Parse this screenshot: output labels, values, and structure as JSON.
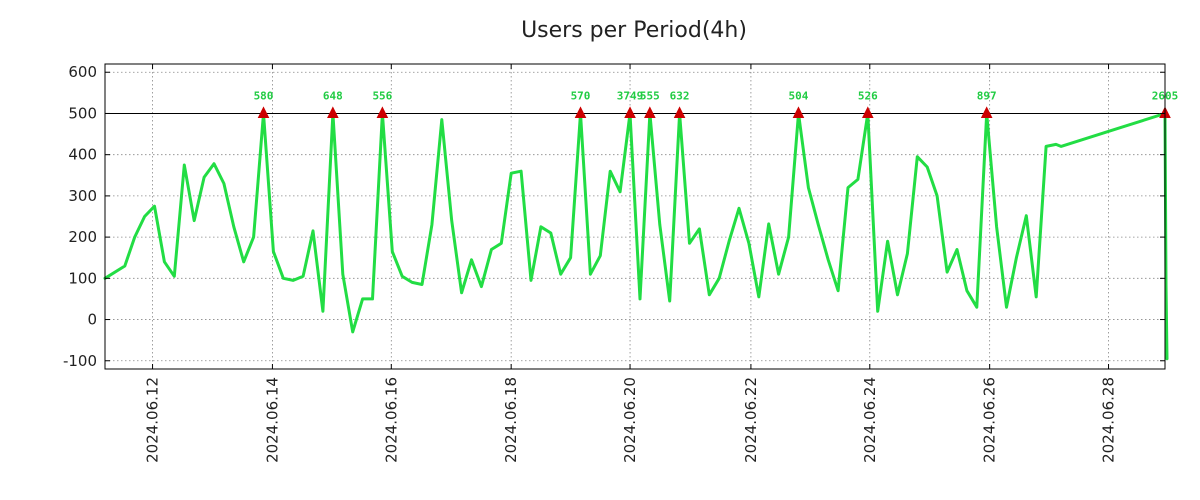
{
  "chart_data": {
    "type": "line",
    "title": "Users per Period(4h)",
    "xlabel": "",
    "ylabel": "",
    "ylim": [
      -120,
      620
    ],
    "xlim": [
      0,
      107
    ],
    "y_ticks": [
      600,
      500,
      400,
      300,
      200,
      100,
      0,
      -100
    ],
    "y_tick_labels": [
      "600",
      "500",
      "400",
      "300",
      "200",
      "100",
      "0",
      "-100"
    ],
    "x_ticks": [
      4.8,
      16.9,
      28.9,
      41,
      53,
      65.2,
      77.2,
      89.3,
      101.3
    ],
    "x_tick_labels": [
      "2024.06.12",
      "2024.06.14",
      "2024.06.16",
      "2024.06.18",
      "2024.06.20",
      "2024.06.22",
      "2024.06.24",
      "2024.06.26",
      "2024.06.28"
    ],
    "threshold": 500,
    "grid": true,
    "colors": {
      "line": "#22dd44",
      "marker": "#cc0000",
      "label": "#22cc44",
      "threshold": "#000000",
      "grid": "#888888"
    },
    "series": [
      {
        "name": "Users",
        "x": [
          0,
          2,
          3,
          4,
          5,
          6,
          7,
          8,
          9,
          10,
          11,
          12,
          13,
          14,
          15,
          16,
          17,
          18,
          19,
          20,
          21,
          22,
          23,
          24,
          25,
          26,
          27,
          28,
          29,
          30,
          31,
          32,
          33,
          34,
          35,
          36,
          37,
          38,
          39,
          40,
          41,
          42,
          43,
          44,
          45,
          46,
          47,
          48,
          49,
          50,
          51,
          52,
          53,
          54,
          55,
          56,
          57,
          58,
          59,
          60,
          61,
          62,
          63,
          64,
          65,
          66,
          67,
          68,
          69,
          70,
          71,
          72,
          73,
          74,
          75,
          76,
          77,
          78,
          79,
          80,
          81,
          82,
          83,
          84,
          85,
          86,
          87,
          88,
          89,
          90,
          91,
          92,
          93,
          94,
          95,
          96,
          96.5,
          107,
          107.1,
          107.2
        ],
        "y": [
          100,
          130,
          200,
          250,
          275,
          140,
          105,
          375,
          240,
          345,
          378,
          330,
          225,
          140,
          200,
          500,
          165,
          100,
          95,
          105,
          215,
          20,
          500,
          110,
          -30,
          50,
          50,
          500,
          165,
          105,
          90,
          85,
          230,
          485,
          240,
          65,
          145,
          80,
          170,
          185,
          355,
          360,
          95,
          225,
          210,
          110,
          150,
          500,
          110,
          155,
          360,
          310,
          500,
          50,
          500,
          230,
          45,
          500,
          185,
          220,
          60,
          100,
          190,
          270,
          185,
          55,
          232,
          110,
          200,
          500,
          320,
          230,
          145,
          70,
          320,
          340,
          500,
          20,
          190,
          60,
          160,
          395,
          370,
          300,
          115,
          170,
          70,
          30,
          500,
          225,
          30,
          150,
          252,
          55,
          420,
          425,
          420,
          500,
          85,
          -95
        ],
        "peaks": [
          {
            "x": 16,
            "label": "580"
          },
          {
            "x": 23,
            "label": "648"
          },
          {
            "x": 28,
            "label": "556"
          },
          {
            "x": 48,
            "label": "570"
          },
          {
            "x": 53,
            "label": "3749"
          },
          {
            "x": 55,
            "label": "555"
          },
          {
            "x": 58,
            "label": "632"
          },
          {
            "x": 70,
            "label": "504"
          },
          {
            "x": 77,
            "label": "526"
          },
          {
            "x": 89,
            "label": "897"
          },
          {
            "x": 107,
            "label": "2605"
          }
        ]
      }
    ]
  }
}
